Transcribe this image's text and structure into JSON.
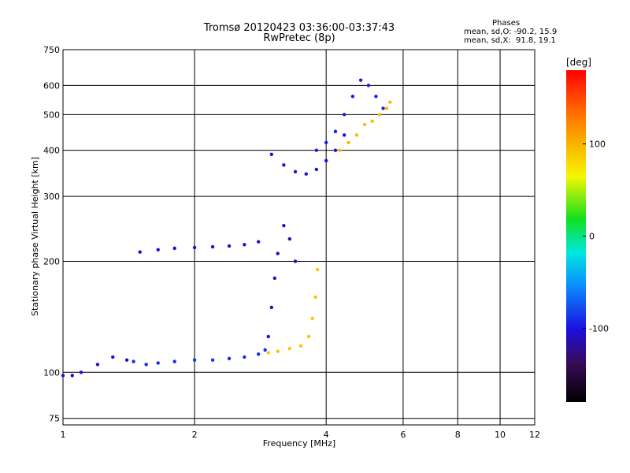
{
  "chart_data": {
    "type": "scatter",
    "title": "Tromsø 20120423 03:36:00-03:37:43",
    "subtitle": "RwPretec (8p)",
    "xlabel": "Frequency [MHz]",
    "ylabel": "Stationary phase Virtual Height [km]",
    "x_scale": "log",
    "y_scale": "log",
    "xlim": [
      1,
      12
    ],
    "ylim": [
      72,
      750
    ],
    "x_ticks": [
      1,
      2,
      4,
      6,
      8,
      10,
      12
    ],
    "y_ticks": [
      75,
      100,
      200,
      300,
      400,
      500,
      600,
      750
    ],
    "grid": true,
    "colorbar": {
      "label": "[deg]",
      "range": [
        -180,
        180
      ],
      "ticks": [
        -100,
        0,
        100
      ]
    },
    "phase_stats": {
      "heading": "Phases",
      "o_mode": "mean, sd,O: -90.2, 15.9",
      "x_mode": "mean, sd,X:  91.8, 19.1"
    },
    "traces": [
      {
        "name": "o-trace-low",
        "phase": -90,
        "x": [
          1.45,
          1.55,
          1.65,
          1.8,
          2.0,
          2.2,
          2.4,
          2.6,
          2.8,
          2.9
        ],
        "y": [
          107,
          105,
          106,
          107,
          108,
          108,
          109,
          110,
          112,
          115
        ]
      },
      {
        "name": "o-trace-lead",
        "phase": -105,
        "x": [
          1.0,
          1.05,
          1.1,
          1.2,
          1.3,
          1.4
        ],
        "y": [
          98,
          98,
          100,
          105,
          110,
          108
        ]
      },
      {
        "name": "o-trace-mid",
        "phase": -105,
        "x": [
          1.5,
          1.65,
          1.8,
          2.0,
          2.2,
          2.4,
          2.6,
          2.8
        ],
        "y": [
          212,
          215,
          217,
          218,
          219,
          220,
          222,
          226
        ]
      },
      {
        "name": "o-trace-cusp",
        "phase": -110,
        "x": [
          2.95,
          3.0,
          3.05,
          3.1,
          3.2,
          3.3,
          3.4
        ],
        "y": [
          125,
          150,
          180,
          210,
          250,
          230,
          200
        ]
      },
      {
        "name": "o-trace-f2",
        "phase": -100,
        "x": [
          3.0,
          3.2,
          3.4,
          3.6,
          3.8,
          4.0,
          4.2,
          4.4
        ],
        "y": [
          390,
          365,
          350,
          345,
          355,
          375,
          400,
          440
        ]
      },
      {
        "name": "o-trace-f2-upper",
        "phase": -95,
        "x": [
          3.8,
          4.0,
          4.2,
          4.4,
          4.6,
          4.8,
          5.0,
          5.2,
          5.4
        ],
        "y": [
          400,
          420,
          450,
          500,
          560,
          620,
          600,
          560,
          520
        ]
      },
      {
        "name": "x-trace-low",
        "phase": 90,
        "x": [
          2.95,
          3.1,
          3.3,
          3.5,
          3.65,
          3.72,
          3.78,
          3.82
        ],
        "y": [
          113,
          114,
          116,
          118,
          125,
          140,
          160,
          190
        ]
      },
      {
        "name": "x-trace-f2",
        "phase": 95,
        "x": [
          4.3,
          4.5,
          4.7,
          4.9,
          5.1,
          5.3,
          5.5,
          5.6
        ],
        "y": [
          400,
          420,
          440,
          470,
          480,
          500,
          520,
          540
        ]
      }
    ]
  }
}
